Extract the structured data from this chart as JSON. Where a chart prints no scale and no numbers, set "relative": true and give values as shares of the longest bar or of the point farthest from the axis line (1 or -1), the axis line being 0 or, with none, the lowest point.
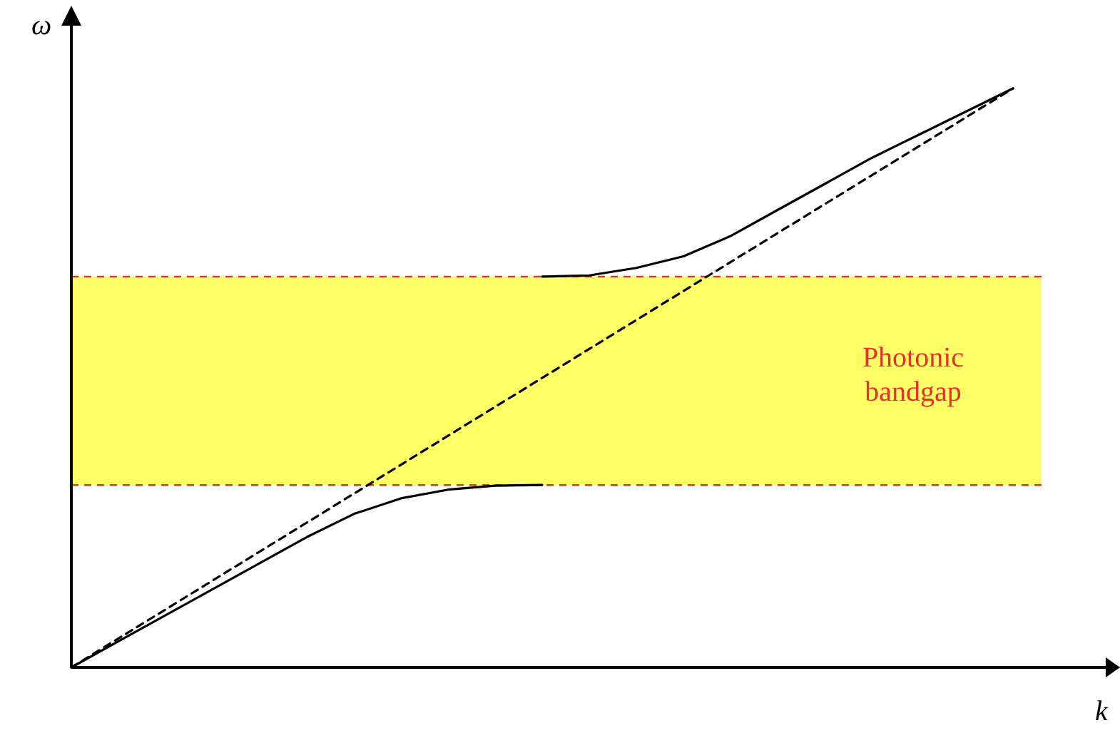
{
  "chart_data": {
    "type": "line",
    "relative": true,
    "xlabel": "k",
    "ylabel": "ω",
    "categories": [
      null,
      null,
      null,
      null,
      null,
      null,
      null,
      null,
      null,
      null,
      null,
      null,
      null,
      null,
      null,
      null,
      null,
      null,
      null,
      null,
      null
    ],
    "series": [
      {
        "color": "#000000",
        "line_style": "solid",
        "values": [
          0,
          0.045,
          0.09,
          0.135,
          0.18,
          0.225,
          0.265,
          0.292,
          0.307,
          0.314,
          0.315,
          null,
          null,
          null,
          null,
          null,
          null,
          null,
          null,
          null,
          null
        ]
      },
      {
        "color": "#000000",
        "line_style": "solid",
        "values": [
          null,
          null,
          null,
          null,
          null,
          null,
          null,
          null,
          null,
          null,
          0.675,
          0.677,
          0.69,
          0.71,
          0.745,
          0.79,
          0.835,
          0.88,
          0.92,
          0.96,
          1
        ]
      },
      {
        "color": "#000000",
        "line_style": "dashed",
        "values": [
          0,
          0.05,
          0.1,
          0.15,
          0.2,
          0.25,
          0.3,
          0.35,
          0.4,
          0.45,
          0.5,
          0.55,
          0.6,
          0.65,
          0.7,
          0.75,
          0.8,
          0.85,
          0.9,
          0.95,
          1
        ]
      }
    ],
    "bands": [
      {
        "axis": "y",
        "from": 0.315,
        "to": 0.675,
        "label": "Photonic bandgap",
        "color": "#ffff66"
      }
    ],
    "ref_lines": [
      {
        "axis": "y",
        "value": 0.315,
        "color": "#e8302a",
        "line_style": "dashed"
      },
      {
        "axis": "y",
        "value": 0.675,
        "color": "#e8302a",
        "line_style": "dashed"
      }
    ]
  }
}
